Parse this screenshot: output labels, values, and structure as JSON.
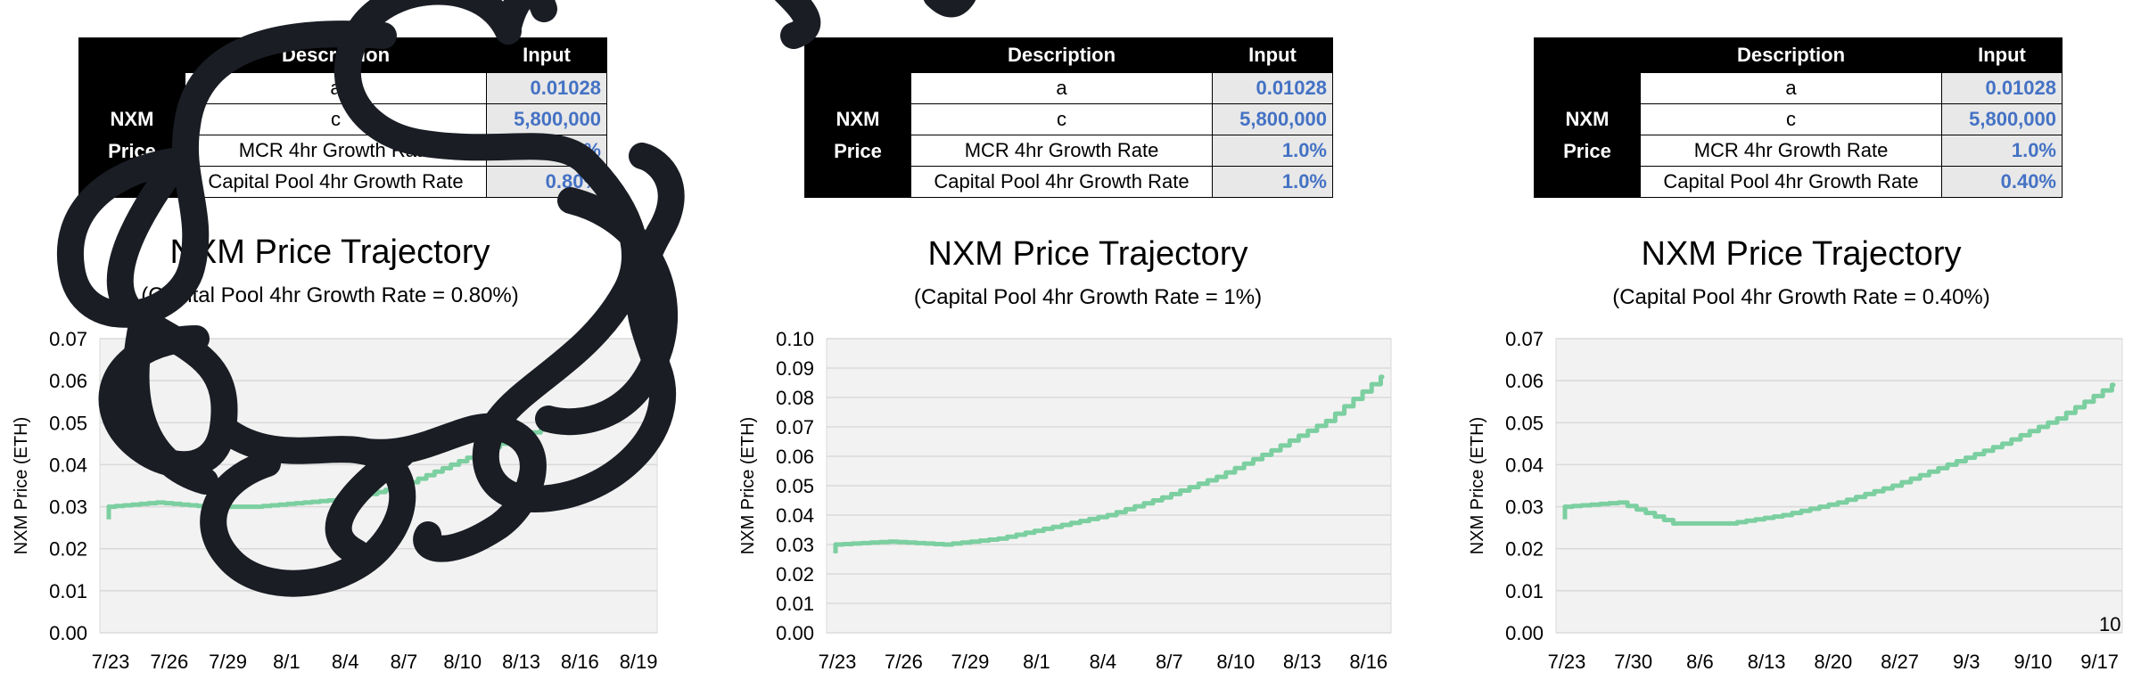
{
  "panels": [
    {
      "table": {
        "headers": [
          "Description",
          "Input"
        ],
        "group_label": [
          "NXM",
          "Price"
        ],
        "rows": [
          {
            "desc": "a",
            "input": "0.01028"
          },
          {
            "desc": "c",
            "input": "5,800,000"
          },
          {
            "desc": "MCR 4hr Growth Rate",
            "input": "1.0%"
          },
          {
            "desc": "Capital Pool 4hr Growth Rate",
            "input": "0.80%"
          }
        ]
      },
      "title": "NXM Price Trajectory",
      "subtitle": "(Capital Pool 4hr Growth Rate = 0.80%)"
    },
    {
      "table": {
        "headers": [
          "Description",
          "Input"
        ],
        "group_label": [
          "NXM",
          "Price"
        ],
        "rows": [
          {
            "desc": "a",
            "input": "0.01028"
          },
          {
            "desc": "c",
            "input": "5,800,000"
          },
          {
            "desc": "MCR 4hr Growth Rate",
            "input": "1.0%"
          },
          {
            "desc": "Capital Pool 4hr Growth Rate",
            "input": "1.0%"
          }
        ]
      },
      "title": "NXM Price Trajectory",
      "subtitle": "(Capital Pool 4hr Growth Rate = 1%)"
    },
    {
      "table": {
        "headers": [
          "Description",
          "Input"
        ],
        "group_label": [
          "NXM",
          "Price"
        ],
        "rows": [
          {
            "desc": "a",
            "input": "0.01028"
          },
          {
            "desc": "c",
            "input": "5,800,000"
          },
          {
            "desc": "MCR 4hr Growth Rate",
            "input": "1.0%"
          },
          {
            "desc": "Capital Pool 4hr Growth Rate",
            "input": "0.40%"
          }
        ]
      },
      "title": "NXM Price Trajectory",
      "subtitle": "(Capital Pool 4hr Growth Rate = 0.40%)"
    }
  ],
  "page_number": "10",
  "colors": {
    "line": "#7ccfa0",
    "plot_bg": "#f2f2f2",
    "grid": "#d9d9d9",
    "input_text": "#4472c4",
    "overlay": "#1a1d24"
  },
  "chart_data": [
    {
      "type": "line",
      "title": "NXM Price Trajectory",
      "subtitle": "(Capital Pool 4hr Growth Rate = 0.80%)",
      "ylabel": "NXM Price (ETH)",
      "ylim": [
        0,
        0.07
      ],
      "yticks": [
        "0.00",
        "0.01",
        "0.02",
        "0.03",
        "0.04",
        "0.05",
        "0.06",
        "0.07"
      ],
      "xticks": [
        "7/23",
        "7/26",
        "7/29",
        "8/1",
        "8/4",
        "8/7",
        "8/10",
        "8/13",
        "8/16",
        "8/19"
      ],
      "x": [
        "7/23",
        "7/24",
        "7/26",
        "7/29",
        "8/1",
        "8/4",
        "8/7",
        "8/10",
        "8/13",
        "8/16",
        "8/19",
        "8/21"
      ],
      "values": [
        0.03,
        0.031,
        0.03,
        0.03,
        0.031,
        0.032,
        0.035,
        0.04,
        0.045,
        0.049,
        0.054,
        0.059
      ],
      "grid": true
    },
    {
      "type": "line",
      "title": "NXM Price Trajectory",
      "subtitle": "(Capital Pool 4hr Growth Rate = 1%)",
      "ylabel": "NXM Price (ETH)",
      "ylim": [
        0,
        0.1
      ],
      "yticks": [
        "0.00",
        "0.01",
        "0.02",
        "0.03",
        "0.04",
        "0.05",
        "0.06",
        "0.07",
        "0.08",
        "0.09",
        "0.10"
      ],
      "xticks": [
        "7/23",
        "7/26",
        "7/29",
        "8/1",
        "8/4",
        "8/7",
        "8/10",
        "8/13",
        "8/16"
      ],
      "x": [
        "7/23",
        "7/24",
        "7/26",
        "7/29",
        "8/1",
        "8/4",
        "8/7",
        "8/10",
        "8/13",
        "8/16",
        "8/19"
      ],
      "values": [
        0.03,
        0.031,
        0.03,
        0.032,
        0.036,
        0.04,
        0.046,
        0.053,
        0.062,
        0.072,
        0.087
      ],
      "grid": true
    },
    {
      "type": "line",
      "title": "NXM Price Trajectory",
      "subtitle": "(Capital Pool 4hr Growth Rate = 0.40%)",
      "ylabel": "NXM Price (ETH)",
      "ylim": [
        0,
        0.07
      ],
      "yticks": [
        "0.00",
        "0.01",
        "0.02",
        "0.03",
        "0.04",
        "0.05",
        "0.06",
        "0.07"
      ],
      "xticks": [
        "7/23",
        "7/30",
        "8/6",
        "8/13",
        "8/20",
        "8/27",
        "9/3",
        "9/10",
        "9/17"
      ],
      "x": [
        "7/23",
        "7/25",
        "7/27",
        "7/30",
        "8/6",
        "8/13",
        "8/20",
        "8/27",
        "9/3",
        "9/10",
        "9/17"
      ],
      "values": [
        0.03,
        0.031,
        0.026,
        0.026,
        0.028,
        0.031,
        0.035,
        0.04,
        0.045,
        0.051,
        0.059
      ],
      "grid": true
    }
  ]
}
